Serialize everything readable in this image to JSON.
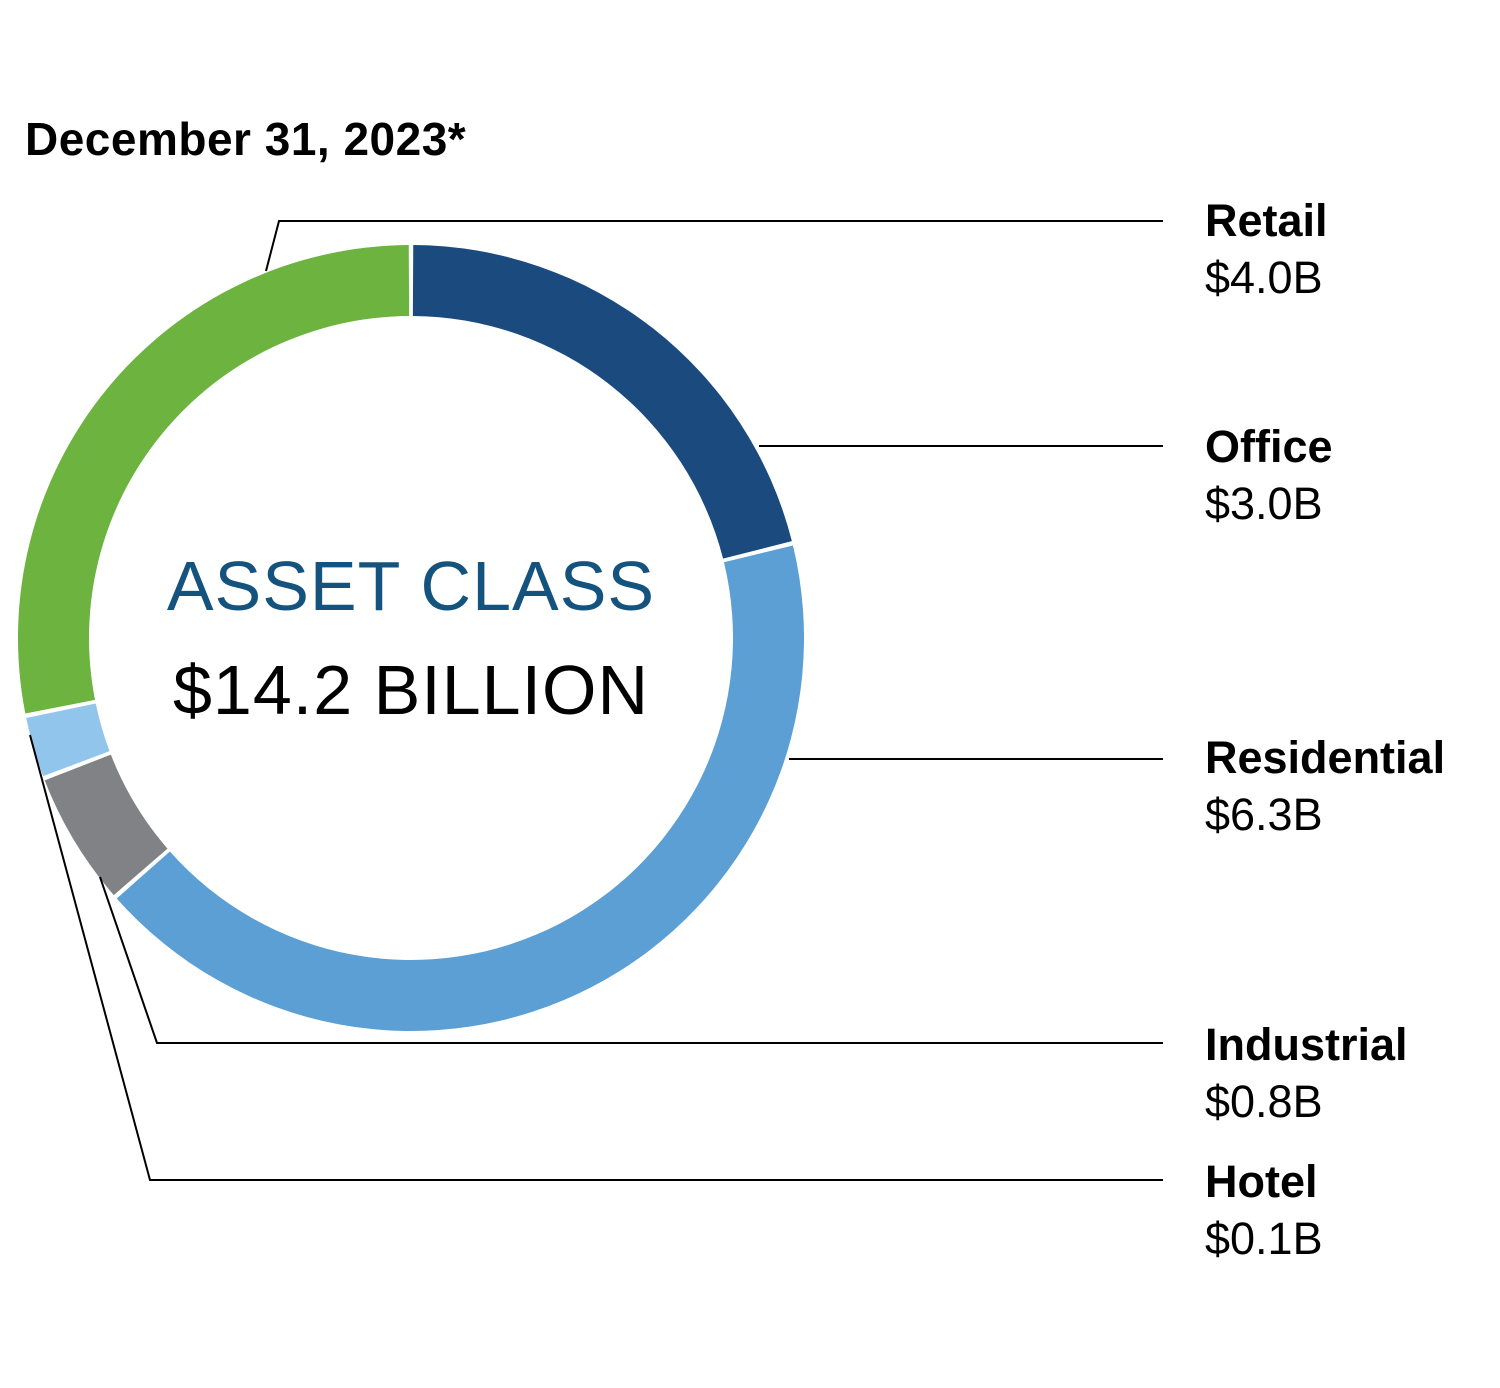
{
  "page": {
    "title": "December 31, 2023*"
  },
  "chart_data": {
    "type": "pie",
    "subtype": "donut",
    "title": "December 31, 2023*",
    "center_label": "ASSET CLASS",
    "center_value": "$14.2 BILLION",
    "total_billions": 14.2,
    "unit": "USD billions",
    "slices": [
      {
        "name": "Retail",
        "value": 4.0,
        "value_label": "$4.0B",
        "color": "#6cb33f"
      },
      {
        "name": "Office",
        "value": 3.0,
        "value_label": "$3.0B",
        "color": "#1a4a7e"
      },
      {
        "name": "Residential",
        "value": 6.3,
        "value_label": "$6.3B",
        "color": "#5b9fd4"
      },
      {
        "name": "Industrial",
        "value": 0.8,
        "value_label": "$0.8B",
        "color": "#808285"
      },
      {
        "name": "Hotel",
        "value": 0.1,
        "value_label": "$0.1B",
        "color": "#92c5ec"
      }
    ],
    "layout": {
      "order_clockwise_from_top": [
        "Office",
        "Residential",
        "Industrial",
        "Hotel",
        "Retail"
      ],
      "start_at_top": true,
      "legend_position": "right",
      "min_slice_display_deg": 9.5,
      "slice_gap_white": "#ffffff",
      "leader_line_color": "#000000",
      "center_label_color": "#15537f",
      "center_value_color": "#000000"
    }
  }
}
